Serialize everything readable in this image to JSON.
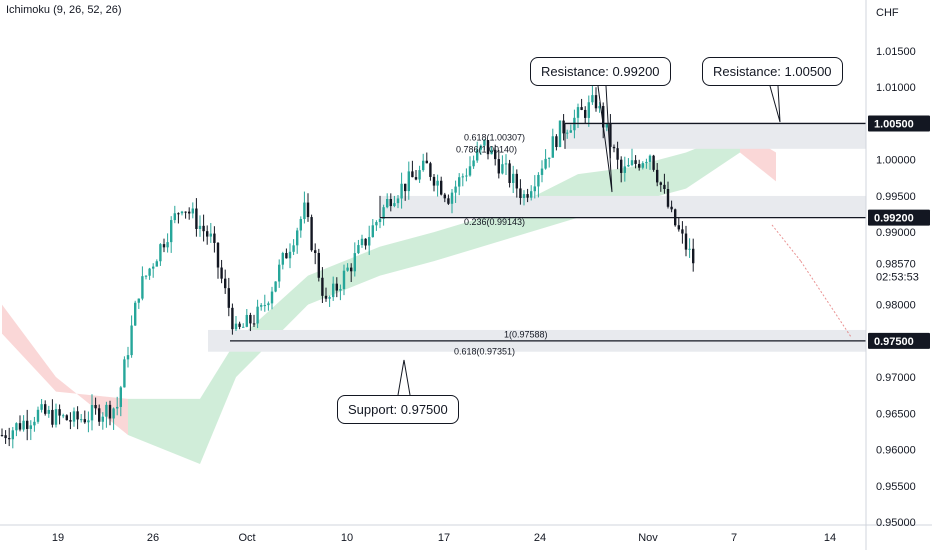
{
  "indicator_label": "Ichimoku (9, 26, 52, 26)",
  "currency": "CHF",
  "callouts": {
    "resistance_1": "Resistance: 0.99200",
    "resistance_2": "Resistance: 1.00500",
    "support": "Support: 0.97500"
  },
  "fib_labels": [
    "0.618(1.00307)",
    "0.786(1.00140)",
    "0.236(0.99143)",
    "1(0.97588)",
    "0.618(0.97351)"
  ],
  "colors": {
    "bull": "#26a69a",
    "bear": "#131722",
    "cloud_green": "#c8ead2",
    "cloud_red": "#f9d0d0",
    "zone": "#e8eaee",
    "level": "#131722",
    "projection": "#e06666"
  },
  "chart_data": {
    "type": "candlestick",
    "ylim": [
      0.95,
      1.018
    ],
    "yticks": [
      "1.01500",
      "1.01000",
      "1.00500",
      "1.00000",
      "0.99500",
      "0.99000",
      "0.98500",
      "0.98000",
      "0.97500",
      "0.97000",
      "0.96500",
      "0.96000",
      "0.95500",
      "0.95000"
    ],
    "xticks": [
      "19",
      "26",
      "Oct",
      "10",
      "17",
      "24",
      "Nov",
      "7",
      "14"
    ],
    "price_labels": [
      {
        "value": 1.005,
        "text": "1.00500",
        "highlight": true
      },
      {
        "value": 0.992,
        "text": "0.99200",
        "highlight": true
      },
      {
        "value": 0.9857,
        "text": "0.98570",
        "highlight": false
      },
      {
        "value": 0.975,
        "text": "0.97500",
        "highlight": true
      }
    ],
    "countdown": "02:53:53",
    "levels": [
      1.005,
      0.992,
      0.975
    ],
    "key_points": [
      {
        "t": 0,
        "p": 0.962
      },
      {
        "t": 10,
        "p": 0.965
      },
      {
        "t": 20,
        "p": 0.964
      },
      {
        "t": 32,
        "p": 0.966
      },
      {
        "t": 38,
        "p": 0.982
      },
      {
        "t": 50,
        "p": 0.994
      },
      {
        "t": 58,
        "p": 0.989
      },
      {
        "t": 65,
        "p": 0.976
      },
      {
        "t": 72,
        "p": 0.979
      },
      {
        "t": 84,
        "p": 0.993
      },
      {
        "t": 90,
        "p": 0.98
      },
      {
        "t": 100,
        "p": 0.988
      },
      {
        "t": 108,
        "p": 0.995
      },
      {
        "t": 118,
        "p": 0.999
      },
      {
        "t": 124,
        "p": 0.995
      },
      {
        "t": 134,
        "p": 1.002
      },
      {
        "t": 145,
        "p": 0.995
      },
      {
        "t": 155,
        "p": 1.004
      },
      {
        "t": 165,
        "p": 1.008
      },
      {
        "t": 172,
        "p": 0.998
      },
      {
        "t": 180,
        "p": 1.001
      },
      {
        "t": 186,
        "p": 0.992
      },
      {
        "t": 192,
        "p": 0.986
      }
    ],
    "cloud": [
      {
        "t": 0,
        "a": 0.98,
        "b": 0.976
      },
      {
        "t": 15,
        "a": 0.97,
        "b": 0.968
      },
      {
        "t": 35,
        "a": 0.962,
        "b": 0.967
      },
      {
        "t": 55,
        "a": 0.958,
        "b": 0.967
      },
      {
        "t": 65,
        "a": 0.97,
        "b": 0.975
      },
      {
        "t": 85,
        "a": 0.98,
        "b": 0.984
      },
      {
        "t": 105,
        "a": 0.984,
        "b": 0.988
      },
      {
        "t": 120,
        "a": 0.986,
        "b": 0.99
      },
      {
        "t": 140,
        "a": 0.989,
        "b": 0.993
      },
      {
        "t": 160,
        "a": 0.992,
        "b": 0.998
      },
      {
        "t": 175,
        "a": 0.994,
        "b": 0.999
      },
      {
        "t": 190,
        "a": 0.996,
        "b": 1.001
      },
      {
        "t": 205,
        "a": 1.001,
        "b": 1.004
      },
      {
        "t": 215,
        "a": 0.997,
        "b": 1.001
      }
    ],
    "projection": [
      {
        "t": 210,
        "p": 0.991
      },
      {
        "t": 218,
        "p": 0.986
      },
      {
        "t": 226,
        "p": 0.98
      },
      {
        "t": 232,
        "p": 0.9755
      }
    ]
  }
}
